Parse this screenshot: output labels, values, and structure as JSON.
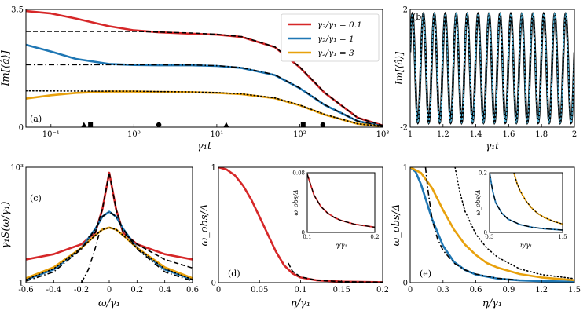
{
  "colors": {
    "red": "#d62728",
    "blue": "#1f77b4",
    "gold": "#e8a10c",
    "black": "#000000",
    "cyan": "#4fb3d9"
  },
  "chart_data": [
    {
      "id": "a",
      "type": "line",
      "panel_label": "(a)",
      "xlabel": "γ₁t",
      "ylabel": "Im[⟨â⟩]",
      "xscale": "log",
      "xlim": [
        0.05,
        1000
      ],
      "ylim": [
        0,
        3.5
      ],
      "xticks": [
        {
          "v": 0.1,
          "label": "10⁻¹"
        },
        {
          "v": 1,
          "label": "10⁰"
        },
        {
          "v": 10,
          "label": "10¹"
        },
        {
          "v": 100,
          "label": "10²"
        },
        {
          "v": 1000,
          "label": "10³"
        }
      ],
      "yticks": [
        {
          "v": 0,
          "label": "0"
        },
        {
          "v": 3.5,
          "label": "3.5"
        }
      ],
      "legend": {
        "position": "top-right",
        "entries": [
          "γ₂/γ₁ = 0.1",
          "γ₂/γ₁ = 1",
          "γ₂/γ₁ = 3"
        ]
      },
      "series": [
        {
          "name": "γ₂/γ₁ = 0.1",
          "color": "red",
          "style": "solid",
          "x": [
            0.05,
            0.1,
            0.2,
            0.5,
            1,
            2,
            5,
            10,
            20,
            50,
            100,
            200,
            500,
            1000
          ],
          "y": [
            3.45,
            3.38,
            3.23,
            3.0,
            2.88,
            2.82,
            2.78,
            2.75,
            2.68,
            2.38,
            1.78,
            1.02,
            0.28,
            0.05
          ]
        },
        {
          "name": "γ₂/γ₁ = 1",
          "color": "blue",
          "style": "solid",
          "x": [
            0.05,
            0.1,
            0.2,
            0.5,
            1,
            2,
            5,
            10,
            20,
            50,
            100,
            200,
            500,
            1000
          ],
          "y": [
            2.45,
            2.25,
            2.03,
            1.88,
            1.85,
            1.84,
            1.84,
            1.82,
            1.76,
            1.55,
            1.16,
            0.66,
            0.18,
            0.03
          ]
        },
        {
          "name": "γ₂/γ₁ = 3",
          "color": "gold",
          "style": "solid",
          "x": [
            0.05,
            0.1,
            0.2,
            0.5,
            1,
            2,
            5,
            10,
            20,
            50,
            100,
            200,
            500,
            1000
          ],
          "y": [
            0.85,
            0.95,
            1.02,
            1.06,
            1.06,
            1.05,
            1.04,
            1.02,
            0.98,
            0.86,
            0.65,
            0.37,
            0.1,
            0.02
          ]
        },
        {
          "name": "ref-dashed",
          "color": "black",
          "style": "dashed",
          "x": [
            0.05,
            1,
            5,
            10,
            20,
            50,
            100,
            200,
            500,
            1000
          ],
          "y": [
            2.85,
            2.85,
            2.8,
            2.76,
            2.69,
            2.39,
            1.79,
            1.03,
            0.28,
            0.05
          ]
        },
        {
          "name": "ref-dashdot",
          "color": "black",
          "style": "dashdot",
          "x": [
            0.05,
            1,
            5,
            10,
            20,
            50,
            100,
            200,
            500,
            1000
          ],
          "y": [
            1.86,
            1.86,
            1.85,
            1.83,
            1.77,
            1.56,
            1.17,
            0.67,
            0.18,
            0.03
          ]
        },
        {
          "name": "ref-dotted",
          "color": "black",
          "style": "dotted",
          "x": [
            0.05,
            0.5,
            1,
            2,
            5,
            10,
            20,
            50,
            100,
            200,
            500,
            1000
          ],
          "y": [
            1.08,
            1.07,
            1.07,
            1.06,
            1.05,
            1.03,
            0.99,
            0.87,
            0.66,
            0.38,
            0.1,
            0.02
          ]
        }
      ],
      "markers": [
        {
          "shape": "triangle",
          "x": 0.25,
          "y": 0.07
        },
        {
          "shape": "square",
          "x": 0.3,
          "y": 0.07
        },
        {
          "shape": "circle",
          "x": 2.0,
          "y": 0.07
        },
        {
          "shape": "triangle",
          "x": 13,
          "y": 0.07
        },
        {
          "shape": "square",
          "x": 110,
          "y": 0.07
        },
        {
          "shape": "circle",
          "x": 190,
          "y": 0.07
        }
      ]
    },
    {
      "id": "b",
      "type": "line",
      "panel_label": "(b)",
      "xlabel": "γ₁t",
      "ylabel": "Im[⟨â⟩]",
      "xlim": [
        1,
        2
      ],
      "ylim": [
        -2,
        2
      ],
      "xticks": [
        {
          "v": 1,
          "label": "1"
        },
        {
          "v": 1.2,
          "label": "1.2"
        },
        {
          "v": 1.4,
          "label": "1.4"
        },
        {
          "v": 1.6,
          "label": "1.6"
        },
        {
          "v": 1.8,
          "label": "1.8"
        },
        {
          "v": 2,
          "label": "2"
        }
      ],
      "yticks": [
        {
          "v": -2,
          "label": "-2"
        },
        {
          "v": 2,
          "label": "2"
        }
      ],
      "oscillation": {
        "amplitude": 1.85,
        "cycles": 15,
        "phase": 0.3
      },
      "series": [
        {
          "name": "black",
          "color": "black",
          "style": "solid"
        },
        {
          "name": "cyan",
          "color": "cyan",
          "style": "dashed"
        }
      ]
    },
    {
      "id": "c",
      "type": "line",
      "panel_label": "(c)",
      "xlabel": "ω/γ₁",
      "ylabel": "γ₁S(ω/γ₁)",
      "yscale": "log",
      "xlim": [
        -0.6,
        0.6
      ],
      "ylim": [
        1,
        1000
      ],
      "xticks": [
        {
          "v": -0.6,
          "label": "-0.6"
        },
        {
          "v": -0.4,
          "label": "-0.4"
        },
        {
          "v": -0.2,
          "label": "-0.2"
        },
        {
          "v": 0,
          "label": "0"
        },
        {
          "v": 0.2,
          "label": "0.2"
        },
        {
          "v": 0.4,
          "label": "0.4"
        },
        {
          "v": 0.6,
          "label": "0.6"
        }
      ],
      "yticks": [
        {
          "v": 1,
          "label": "1"
        },
        {
          "v": 1000,
          "label": "10³"
        }
      ],
      "series": [
        {
          "name": "red",
          "color": "red",
          "style": "solid",
          "x": [
            -0.6,
            -0.4,
            -0.2,
            -0.1,
            -0.05,
            0,
            0.05,
            0.1,
            0.2,
            0.4,
            0.6
          ],
          "y": [
            4,
            5.5,
            10,
            20,
            80,
            720,
            80,
            20,
            10,
            5.5,
            4
          ]
        },
        {
          "name": "blue",
          "color": "blue",
          "style": "solid",
          "x": [
            -0.6,
            -0.4,
            -0.2,
            -0.1,
            -0.05,
            0,
            0.05,
            0.1,
            0.2,
            0.4,
            0.6
          ],
          "y": [
            1.2,
            2.2,
            8,
            25,
            52,
            70,
            52,
            25,
            8,
            2.2,
            1.2
          ]
        },
        {
          "name": "gold",
          "color": "gold",
          "style": "solid",
          "x": [
            -0.6,
            -0.4,
            -0.2,
            -0.1,
            -0.05,
            0,
            0.05,
            0.1,
            0.2,
            0.4,
            0.6
          ],
          "y": [
            1.3,
            2.5,
            8,
            17,
            24,
            27,
            24,
            17,
            8,
            2.5,
            1.3
          ]
        },
        {
          "name": "ref-dashed",
          "color": "black",
          "style": "dashed",
          "x": [
            -0.15,
            -0.1,
            -0.05,
            0,
            0.05,
            0.1,
            0.2,
            0.4,
            0.6
          ],
          "y": [
            15,
            20,
            80,
            720,
            80,
            20,
            10,
            4,
            2.4
          ]
        },
        {
          "name": "ref-dashdot",
          "color": "black",
          "style": "dashdot",
          "x": [
            -0.6,
            -0.4,
            -0.2,
            -0.1,
            -0.05,
            0,
            0.05,
            0.1,
            0.2,
            0.4,
            0.6
          ],
          "y": [
            1.1,
            1.9,
            7.5,
            25,
            52,
            70,
            52,
            25,
            7.5,
            1.9,
            1.1
          ]
        },
        {
          "name": "ref-dotted",
          "color": "black",
          "style": "dotted",
          "x": [
            -0.6,
            -0.4,
            -0.2,
            -0.1,
            -0.05,
            0,
            0.05,
            0.1,
            0.2,
            0.4,
            0.6
          ],
          "y": [
            1.2,
            2.3,
            8,
            17,
            24,
            27,
            24,
            17,
            8,
            2.3,
            1.2
          ]
        },
        {
          "name": "ref-dashdot-low",
          "color": "black",
          "style": "dashdot",
          "x": [
            -0.2,
            -0.15,
            -0.1,
            -0.07
          ],
          "y": [
            1.0,
            2.2,
            8,
            20
          ]
        }
      ]
    },
    {
      "id": "d",
      "type": "line",
      "panel_label": "(d)",
      "xlabel": "η/γ₁",
      "ylabel": "ω_obs/Δ",
      "xlim": [
        0,
        0.2
      ],
      "ylim": [
        0,
        1
      ],
      "xticks": [
        {
          "v": 0,
          "label": "0"
        },
        {
          "v": 0.05,
          "label": "0.05"
        },
        {
          "v": 0.1,
          "label": "0.1"
        },
        {
          "v": 0.15,
          "label": "0.15"
        },
        {
          "v": 0.2,
          "label": "0.2"
        }
      ],
      "yticks": [
        {
          "v": 0,
          "label": "0"
        },
        {
          "v": 1,
          "label": "1"
        }
      ],
      "series": [
        {
          "name": "red",
          "color": "red",
          "style": "solid",
          "x": [
            0,
            0.01,
            0.02,
            0.03,
            0.04,
            0.05,
            0.06,
            0.07,
            0.08,
            0.09,
            0.1,
            0.12,
            0.15,
            0.2
          ],
          "y": [
            1.0,
            0.98,
            0.93,
            0.84,
            0.72,
            0.57,
            0.42,
            0.27,
            0.15,
            0.08,
            0.045,
            0.02,
            0.009,
            0.004
          ]
        },
        {
          "name": "ref-dashed",
          "color": "black",
          "style": "dashed",
          "x": [
            0.085,
            0.09,
            0.1,
            0.12,
            0.15,
            0.2
          ],
          "y": [
            0.17,
            0.1,
            0.05,
            0.02,
            0.009,
            0.004
          ]
        }
      ],
      "inset": {
        "xlabel": "η/γ₁",
        "ylabel": "ω_obs/Δ",
        "xlim": [
          0.1,
          0.2
        ],
        "ylim": [
          0,
          0.08
        ],
        "xticks": [
          {
            "v": 0.1,
            "label": "0.1"
          },
          {
            "v": 0.2,
            "label": "0.2"
          }
        ],
        "yticks": [
          {
            "v": 0,
            "label": "0"
          },
          {
            "v": 0.08,
            "label": "0.08"
          }
        ],
        "series": [
          {
            "name": "red",
            "color": "red",
            "style": "solid",
            "x": [
              0.1,
              0.11,
              0.12,
              0.13,
              0.14,
              0.15,
              0.17,
              0.2
            ],
            "y": [
              0.078,
              0.05,
              0.035,
              0.026,
              0.02,
              0.016,
              0.011,
              0.007
            ]
          },
          {
            "name": "ref-dashed",
            "color": "black",
            "style": "dashed",
            "x": [
              0.1,
              0.11,
              0.12,
              0.13,
              0.14,
              0.15,
              0.17,
              0.2
            ],
            "y": [
              0.078,
              0.05,
              0.035,
              0.026,
              0.02,
              0.016,
              0.011,
              0.007
            ]
          }
        ]
      }
    },
    {
      "id": "e",
      "type": "line",
      "panel_label": "(e)",
      "xlabel": "η/γ₁",
      "ylabel": "ω_obs/Δ",
      "xlim": [
        0,
        1.5
      ],
      "ylim": [
        0,
        1
      ],
      "xticks": [
        {
          "v": 0,
          "label": "0"
        },
        {
          "v": 0.3,
          "label": "0.3"
        },
        {
          "v": 0.6,
          "label": "0.6"
        },
        {
          "v": 0.9,
          "label": "0.9"
        },
        {
          "v": 1.2,
          "label": "1.2"
        },
        {
          "v": 1.5,
          "label": "1.5"
        }
      ],
      "yticks": [
        {
          "v": 0,
          "label": "0"
        },
        {
          "v": 1,
          "label": "1"
        }
      ],
      "series": [
        {
          "name": "blue",
          "color": "blue",
          "style": "solid",
          "x": [
            0,
            0.05,
            0.1,
            0.15,
            0.2,
            0.3,
            0.4,
            0.5,
            0.6,
            0.8,
            1.0,
            1.2,
            1.5
          ],
          "y": [
            1.0,
            0.96,
            0.85,
            0.7,
            0.55,
            0.32,
            0.18,
            0.11,
            0.07,
            0.035,
            0.02,
            0.013,
            0.008
          ]
        },
        {
          "name": "gold",
          "color": "gold",
          "style": "solid",
          "x": [
            0,
            0.1,
            0.2,
            0.3,
            0.4,
            0.5,
            0.6,
            0.7,
            0.8,
            1.0,
            1.2,
            1.5
          ],
          "y": [
            1.0,
            0.95,
            0.82,
            0.63,
            0.46,
            0.33,
            0.24,
            0.17,
            0.13,
            0.075,
            0.045,
            0.022
          ]
        },
        {
          "name": "ref-dashdot",
          "color": "black",
          "style": "dashdot",
          "x": [
            0.14,
            0.16,
            0.2,
            0.25,
            0.3,
            0.4,
            0.5,
            0.6,
            0.8,
            1.0
          ],
          "y": [
            1.0,
            0.82,
            0.55,
            0.38,
            0.28,
            0.17,
            0.11,
            0.075,
            0.038,
            0.022
          ]
        },
        {
          "name": "ref-dotted",
          "color": "black",
          "style": "dotted",
          "x": [
            0.41,
            0.45,
            0.5,
            0.6,
            0.7,
            0.8,
            1.0,
            1.2,
            1.5
          ],
          "y": [
            1.0,
            0.8,
            0.62,
            0.42,
            0.3,
            0.22,
            0.12,
            0.07,
            0.035
          ]
        }
      ],
      "inset": {
        "xlabel": "η/γ₁",
        "ylabel": "ω_obs/Δ",
        "xlim": [
          0.3,
          1.5
        ],
        "ylim": [
          0,
          0.2
        ],
        "xticks": [
          {
            "v": 0.3,
            "label": "0.3"
          },
          {
            "v": 1.5,
            "label": "1.5"
          }
        ],
        "yticks": [
          {
            "v": 0,
            "label": "0"
          },
          {
            "v": 0.2,
            "label": "0.2"
          }
        ],
        "series": [
          {
            "name": "blue",
            "color": "blue",
            "style": "solid",
            "x": [
              0.3,
              0.35,
              0.4,
              0.5,
              0.6,
              0.8,
              1.0,
              1.2,
              1.5
            ],
            "y": [
              0.2,
              0.14,
              0.1,
              0.065,
              0.045,
              0.026,
              0.017,
              0.012,
              0.008
            ]
          },
          {
            "name": "gold",
            "color": "gold",
            "style": "solid",
            "x": [
              0.7,
              0.75,
              0.8,
              0.9,
              1.0,
              1.1,
              1.2,
              1.35,
              1.5
            ],
            "y": [
              0.2,
              0.165,
              0.14,
              0.105,
              0.08,
              0.062,
              0.05,
              0.037,
              0.028
            ]
          },
          {
            "name": "ref-dashdot",
            "color": "black",
            "style": "dashdot",
            "x": [
              0.3,
              0.35,
              0.4,
              0.5,
              0.6,
              0.8,
              1.0,
              1.2,
              1.5
            ],
            "y": [
              0.2,
              0.14,
              0.1,
              0.065,
              0.045,
              0.026,
              0.017,
              0.012,
              0.008
            ]
          },
          {
            "name": "ref-dotted",
            "color": "black",
            "style": "dotted",
            "x": [
              0.7,
              0.75,
              0.8,
              0.9,
              1.0,
              1.1,
              1.2,
              1.35,
              1.5
            ],
            "y": [
              0.2,
              0.165,
              0.14,
              0.105,
              0.08,
              0.062,
              0.05,
              0.037,
              0.028
            ]
          }
        ]
      }
    }
  ]
}
